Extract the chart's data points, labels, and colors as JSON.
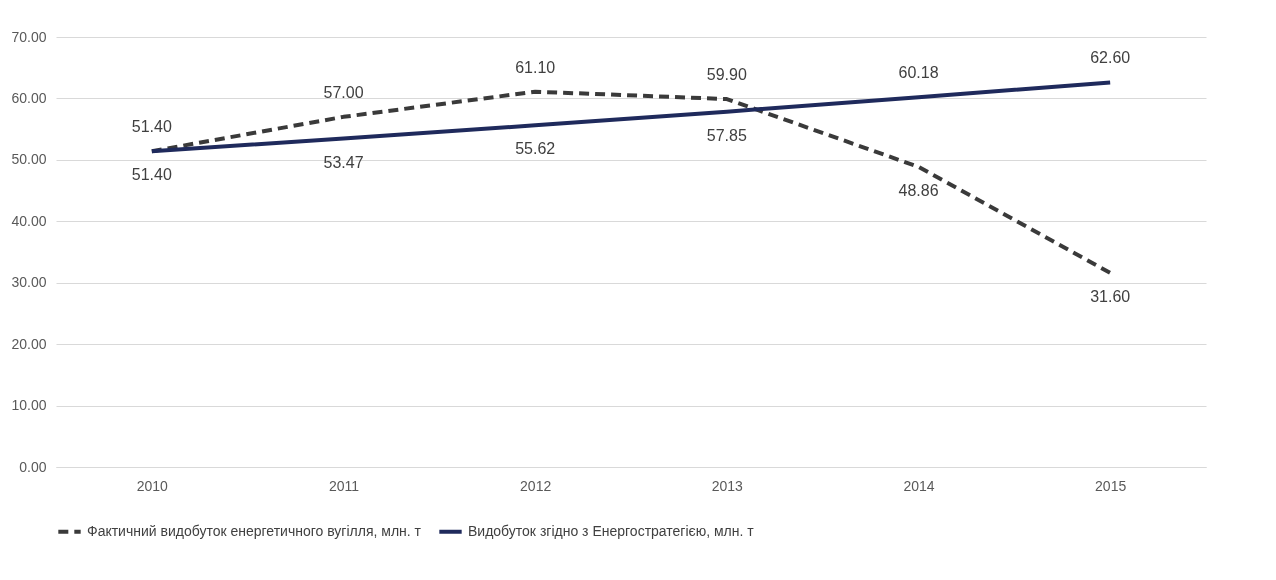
{
  "chart_data": {
    "type": "line",
    "categories": [
      "2010",
      "2011",
      "2012",
      "2013",
      "2014",
      "2015"
    ],
    "series": [
      {
        "name": "Фактичний видобуток енергетичного вугілля, млн. т",
        "color": "#3a3a3a",
        "line_style": "dashed",
        "values": [
          51.4,
          57.0,
          61.1,
          59.9,
          48.86,
          31.6
        ],
        "value_labels": [
          "51.40",
          "57.00",
          "61.10",
          "59.90",
          "48.86",
          "31.60"
        ]
      },
      {
        "name": "Видобуток згідно з Енергостратегією, млн. т",
        "color": "#1f2a5c",
        "line_style": "solid",
        "values": [
          51.4,
          53.47,
          55.62,
          57.85,
          60.18,
          62.6
        ],
        "value_labels": [
          "51.40",
          "53.47",
          "55.62",
          "57.85",
          "60.18",
          "62.60"
        ]
      }
    ],
    "ylim": [
      0,
      70
    ],
    "yticks": [
      {
        "value": 0,
        "label": "0.00"
      },
      {
        "value": 10,
        "label": "10.00"
      },
      {
        "value": 20,
        "label": "20.00"
      },
      {
        "value": 30,
        "label": "30.00"
      },
      {
        "value": 40,
        "label": "40.00"
      },
      {
        "value": 50,
        "label": "50.00"
      },
      {
        "value": 60,
        "label": "60.00"
      },
      {
        "value": 70,
        "label": "70.00"
      }
    ],
    "grid": "y",
    "legend": "bottom",
    "marker": "none"
  }
}
